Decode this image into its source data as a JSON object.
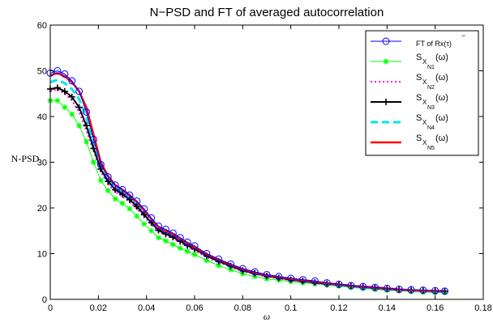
{
  "chart_data": {
    "type": "line",
    "title": "N−PSD and FT of averaged autocorrelation",
    "xlabel": "ω",
    "ylabel": "N-PSD",
    "xlim": [
      0,
      0.18
    ],
    "ylim": [
      0,
      60
    ],
    "xticks": [
      0,
      0.02,
      0.04,
      0.06,
      0.08,
      0.1,
      0.12,
      0.14,
      0.16,
      0.18
    ],
    "yticks": [
      0,
      10,
      20,
      30,
      40,
      50,
      60
    ],
    "xtick_labels": [
      "0",
      "0.02",
      "0.04",
      "0.06",
      "0.08",
      "0.1",
      "0.12",
      "0.14",
      "0.16",
      "0.18"
    ],
    "ytick_labels": [
      "0",
      "10",
      "20",
      "30",
      "40",
      "50",
      "60"
    ],
    "grid": false,
    "legend_position": "top-right",
    "series": [
      {
        "name": "FT of Rx(τ)",
        "legend_main": "FT of Rx(τ)",
        "legend_sub": "",
        "legend_overbar": "−",
        "color": "#0000ff",
        "marker": "circle",
        "linestyle": "solid",
        "linewidth": 1,
        "x": [
          0,
          0.003,
          0.006,
          0.009,
          0.012,
          0.015,
          0.018,
          0.021,
          0.024,
          0.027,
          0.03,
          0.033,
          0.036,
          0.039,
          0.042,
          0.045,
          0.048,
          0.051,
          0.054,
          0.057,
          0.06,
          0.065,
          0.07,
          0.075,
          0.08,
          0.085,
          0.09,
          0.095,
          0.1,
          0.105,
          0.11,
          0.115,
          0.12,
          0.125,
          0.13,
          0.135,
          0.14,
          0.145,
          0.15,
          0.155,
          0.16,
          0.164
        ],
        "y": [
          49.5,
          50,
          49.3,
          47.8,
          45.5,
          41,
          35,
          29.5,
          26.8,
          25,
          24,
          22.8,
          21.5,
          19.8,
          17.8,
          16,
          15.3,
          14.5,
          13.5,
          12.5,
          11.7,
          10,
          8.8,
          7.7,
          6.7,
          6,
          5.4,
          5,
          4.6,
          4.3,
          4,
          3.6,
          3.3,
          3,
          2.8,
          2.6,
          2.4,
          2.2,
          2.1,
          2,
          1.9,
          1.8
        ]
      },
      {
        "name": "S_XN1(ω)",
        "legend_main": "S",
        "legend_sub": "X",
        "legend_subsub": "N1",
        "legend_arg": "(ω)",
        "color": "#00ff00",
        "marker": "star",
        "linestyle": "solid",
        "linewidth": 1,
        "x": [
          0,
          0.003,
          0.006,
          0.009,
          0.012,
          0.015,
          0.018,
          0.021,
          0.024,
          0.027,
          0.03,
          0.033,
          0.036,
          0.039,
          0.042,
          0.045,
          0.048,
          0.051,
          0.054,
          0.057,
          0.06,
          0.065,
          0.07,
          0.075,
          0.08,
          0.085,
          0.09,
          0.095,
          0.1,
          0.105,
          0.11,
          0.115,
          0.12,
          0.125,
          0.13,
          0.135,
          0.14,
          0.145,
          0.15,
          0.155,
          0.16,
          0.164
        ],
        "y": [
          43.5,
          43.5,
          42,
          40.5,
          38,
          34.5,
          30,
          26,
          23.8,
          22,
          21,
          19.8,
          18.2,
          16.5,
          15,
          13.5,
          12.8,
          12,
          11.2,
          10.5,
          9.8,
          8.5,
          7.4,
          6.5,
          5.6,
          5,
          4.5,
          4.2,
          3.9,
          3.6,
          3.4,
          3.1,
          2.9,
          2.6,
          2.4,
          2.2,
          2,
          1.9,
          1.7,
          1.6,
          1.5,
          1.5
        ]
      },
      {
        "name": "S_XN2(ω)",
        "legend_main": "S",
        "legend_sub": "X",
        "legend_subsub": "N2",
        "legend_arg": "(ω)",
        "color": "#ff00ff",
        "marker": "none",
        "linestyle": "dotted",
        "linewidth": 2,
        "x": [
          0,
          0.003,
          0.006,
          0.009,
          0.012,
          0.015,
          0.018,
          0.021,
          0.024,
          0.027,
          0.03,
          0.033,
          0.036,
          0.039,
          0.042,
          0.045,
          0.048,
          0.051,
          0.054,
          0.057,
          0.06,
          0.065,
          0.07,
          0.075,
          0.08,
          0.085,
          0.09,
          0.095,
          0.1,
          0.105,
          0.11,
          0.115,
          0.12,
          0.125,
          0.13,
          0.135,
          0.14,
          0.145,
          0.15,
          0.155,
          0.16,
          0.164
        ],
        "y": [
          45.5,
          46,
          45,
          43.5,
          41,
          37,
          32.5,
          27.8,
          25.2,
          23.5,
          22.5,
          21.3,
          19.8,
          18.1,
          16.4,
          14.8,
          14,
          13.3,
          12.4,
          11.5,
          10.7,
          9.2,
          8.1,
          7.1,
          6.1,
          5.5,
          5,
          4.6,
          4.2,
          3.9,
          3.6,
          3.3,
          3.1,
          2.8,
          2.6,
          2.4,
          2.2,
          2,
          1.9,
          1.8,
          1.7,
          1.7
        ]
      },
      {
        "name": "S_XN3(ω)",
        "legend_main": "S",
        "legend_sub": "X",
        "legend_subsub": "N3",
        "legend_arg": "(ω)",
        "color": "#000000",
        "marker": "plus",
        "linestyle": "solid",
        "linewidth": 2,
        "x": [
          0,
          0.003,
          0.006,
          0.009,
          0.012,
          0.015,
          0.018,
          0.021,
          0.024,
          0.027,
          0.03,
          0.033,
          0.036,
          0.039,
          0.042,
          0.045,
          0.048,
          0.051,
          0.054,
          0.057,
          0.06,
          0.065,
          0.07,
          0.075,
          0.08,
          0.085,
          0.09,
          0.095,
          0.1,
          0.105,
          0.11,
          0.115,
          0.12,
          0.125,
          0.13,
          0.135,
          0.14,
          0.145,
          0.15,
          0.155,
          0.16,
          0.164
        ],
        "y": [
          46,
          46.3,
          45.5,
          44.3,
          42,
          38,
          33,
          28.5,
          25.8,
          24,
          23,
          21.8,
          20.3,
          18.5,
          16.8,
          15.1,
          14.3,
          13.6,
          12.7,
          11.8,
          11,
          9.5,
          8.3,
          7.3,
          6.3,
          5.7,
          5.1,
          4.7,
          4.3,
          4,
          3.7,
          3.4,
          3.2,
          2.9,
          2.7,
          2.5,
          2.3,
          2.1,
          2,
          1.9,
          1.8,
          1.8
        ]
      },
      {
        "name": "S_XN4(ω)",
        "legend_main": "S",
        "legend_sub": "X",
        "legend_subsub": "N4",
        "legend_arg": "(ω)",
        "color": "#00e5ee",
        "marker": "none",
        "linestyle": "dashed",
        "linewidth": 3,
        "x": [
          0,
          0.003,
          0.006,
          0.009,
          0.012,
          0.015,
          0.018,
          0.021,
          0.024,
          0.027,
          0.03,
          0.033,
          0.036,
          0.039,
          0.042,
          0.045,
          0.048,
          0.051,
          0.054,
          0.057,
          0.06,
          0.065,
          0.07,
          0.075,
          0.08,
          0.085,
          0.09,
          0.095,
          0.1,
          0.105,
          0.11,
          0.115,
          0.12,
          0.125,
          0.13,
          0.135,
          0.14,
          0.145,
          0.15,
          0.155,
          0.16,
          0.164
        ],
        "y": [
          47.5,
          48,
          47.3,
          46,
          43.8,
          39.8,
          34.2,
          29,
          26.3,
          24.5,
          23.5,
          22.3,
          20.9,
          19.1,
          17.3,
          15.6,
          14.8,
          14,
          13.1,
          12.2,
          11.3,
          9.8,
          8.6,
          7.5,
          6.5,
          5.8,
          5.2,
          4.8,
          4.4,
          4.1,
          3.8,
          3.5,
          3.2,
          2.9,
          2.7,
          2.5,
          2.3,
          2.1,
          2,
          1.9,
          1.8,
          1.8
        ]
      },
      {
        "name": "S_XN5(ω)",
        "legend_main": "S",
        "legend_sub": "X",
        "legend_subsub": "N5",
        "legend_arg": "(ω)",
        "color": "#ff0000",
        "marker": "none",
        "linestyle": "solid",
        "linewidth": 2.5,
        "x": [
          0,
          0.003,
          0.006,
          0.009,
          0.012,
          0.015,
          0.018,
          0.021,
          0.024,
          0.027,
          0.03,
          0.033,
          0.036,
          0.039,
          0.042,
          0.045,
          0.048,
          0.051,
          0.054,
          0.057,
          0.06,
          0.065,
          0.07,
          0.075,
          0.08,
          0.085,
          0.09,
          0.095,
          0.1,
          0.105,
          0.11,
          0.115,
          0.12,
          0.125,
          0.13,
          0.135,
          0.14,
          0.145,
          0.15,
          0.155,
          0.16,
          0.164
        ],
        "y": [
          49,
          49.5,
          48.8,
          47.5,
          45.5,
          42,
          36,
          30,
          27,
          25,
          24,
          22.8,
          21.3,
          19.5,
          17.6,
          15.8,
          15,
          14.2,
          13.3,
          12.3,
          11.4,
          9.9,
          8.7,
          7.6,
          6.6,
          5.9,
          5.3,
          4.9,
          4.5,
          4.2,
          3.9,
          3.5,
          3.3,
          3,
          2.8,
          2.6,
          2.4,
          2.2,
          2,
          1.9,
          1.8,
          1.8
        ]
      }
    ]
  }
}
